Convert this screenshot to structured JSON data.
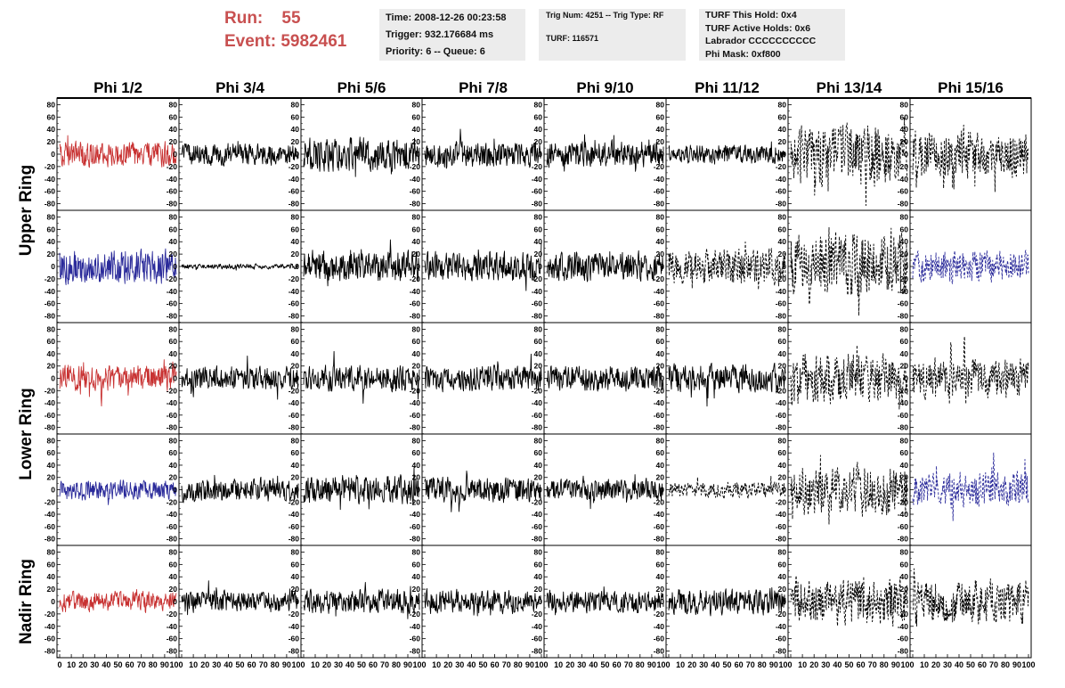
{
  "header": {
    "run_label": "Run:",
    "run_value": "55",
    "event_label": "Event:",
    "event_value": "5982461"
  },
  "info_panel_1": {
    "time": "Time: 2008-12-26 00:23:58",
    "trigger": "Trigger: 932.176684 ms",
    "priority": "Priority: 6 -- Queue: 6"
  },
  "info_panel_2": {
    "trig": "Trig Num: 4251 -- Trig Type: RF",
    "turf": "TURF: 116571"
  },
  "info_panel_3": {
    "hold": "TURF This Hold: 0x4",
    "active": "TURF Active Holds: 0x6",
    "labrador": "Labrador CCCCCCCCCC",
    "phimask": "Phi Mask: 0xf800"
  },
  "colors": {
    "red": "#c83232",
    "blue": "#2a2a9a",
    "black": "#000000",
    "header_red": "#c85050",
    "panel_bg": "#ececec"
  },
  "chart_data": {
    "type": "line",
    "columns": [
      "Phi 1/2",
      "Phi 3/4",
      "Phi 5/6",
      "Phi 7/8",
      "Phi 9/10",
      "Phi 11/12",
      "Phi 13/14",
      "Phi 15/16"
    ],
    "row_groups": [
      {
        "label": "Upper Ring",
        "rows": [
          0,
          1
        ]
      },
      {
        "label": "Lower Ring",
        "rows": [
          2,
          3
        ]
      },
      {
        "label": "Nadir Ring",
        "rows": [
          4
        ]
      }
    ],
    "x_range": [
      0,
      100
    ],
    "y_range": [
      -85,
      85
    ],
    "y_ticks": [
      -80,
      -60,
      -40,
      -20,
      0,
      20,
      40,
      60,
      80
    ],
    "x_ticks": [
      0,
      10,
      20,
      30,
      40,
      50,
      60,
      70,
      80,
      90,
      100
    ],
    "points_per_trace": 260,
    "traces": [
      [
        {
          "color": "red",
          "amp": 13,
          "style": "solid"
        },
        {
          "color": "black",
          "amp": 11,
          "style": "solid"
        },
        {
          "color": "black",
          "amp": 17,
          "style": "solid"
        },
        {
          "color": "black",
          "amp": 13,
          "style": "solid"
        },
        {
          "color": "black",
          "amp": 13,
          "style": "solid"
        },
        {
          "color": "black",
          "amp": 10,
          "style": "solid"
        },
        {
          "color": "black",
          "amp": 30,
          "style": "dash"
        },
        {
          "color": "black",
          "amp": 24,
          "style": "dash"
        }
      ],
      [
        {
          "color": "blue",
          "amp": 17,
          "style": "solid"
        },
        {
          "color": "black",
          "amp": 2.5,
          "style": "solid"
        },
        {
          "color": "black",
          "amp": 16,
          "style": "solid"
        },
        {
          "color": "black",
          "amp": 15,
          "style": "solid"
        },
        {
          "color": "black",
          "amp": 15,
          "style": "solid"
        },
        {
          "color": "black",
          "amp": 18,
          "style": "dash"
        },
        {
          "color": "black",
          "amp": 34,
          "style": "dash"
        },
        {
          "color": "blue",
          "amp": 16,
          "style": "dash"
        }
      ],
      [
        {
          "color": "red",
          "amp": 13,
          "style": "solid"
        },
        {
          "color": "black",
          "amp": 12,
          "style": "solid"
        },
        {
          "color": "black",
          "amp": 13,
          "style": "solid"
        },
        {
          "color": "black",
          "amp": 13,
          "style": "solid"
        },
        {
          "color": "black",
          "amp": 13,
          "style": "solid"
        },
        {
          "color": "black",
          "amp": 14,
          "style": "solid"
        },
        {
          "color": "black",
          "amp": 26,
          "style": "dash"
        },
        {
          "color": "black",
          "amp": 20,
          "style": "dash"
        }
      ],
      [
        {
          "color": "blue",
          "amp": 10,
          "style": "solid"
        },
        {
          "color": "black",
          "amp": 12,
          "style": "solid"
        },
        {
          "color": "black",
          "amp": 15,
          "style": "solid"
        },
        {
          "color": "black",
          "amp": 13,
          "style": "solid"
        },
        {
          "color": "black",
          "amp": 11,
          "style": "solid"
        },
        {
          "color": "black",
          "amp": 8,
          "style": "dash"
        },
        {
          "color": "black",
          "amp": 26,
          "style": "dash"
        },
        {
          "color": "blue",
          "amp": 18,
          "style": "dash"
        }
      ],
      [
        {
          "color": "red",
          "amp": 10,
          "style": "solid"
        },
        {
          "color": "black",
          "amp": 11,
          "style": "solid"
        },
        {
          "color": "black",
          "amp": 12,
          "style": "solid"
        },
        {
          "color": "black",
          "amp": 12,
          "style": "solid"
        },
        {
          "color": "black",
          "amp": 11,
          "style": "solid"
        },
        {
          "color": "black",
          "amp": 13,
          "style": "solid"
        },
        {
          "color": "black",
          "amp": 24,
          "style": "dash"
        },
        {
          "color": "black",
          "amp": 22,
          "style": "dash"
        }
      ]
    ]
  }
}
